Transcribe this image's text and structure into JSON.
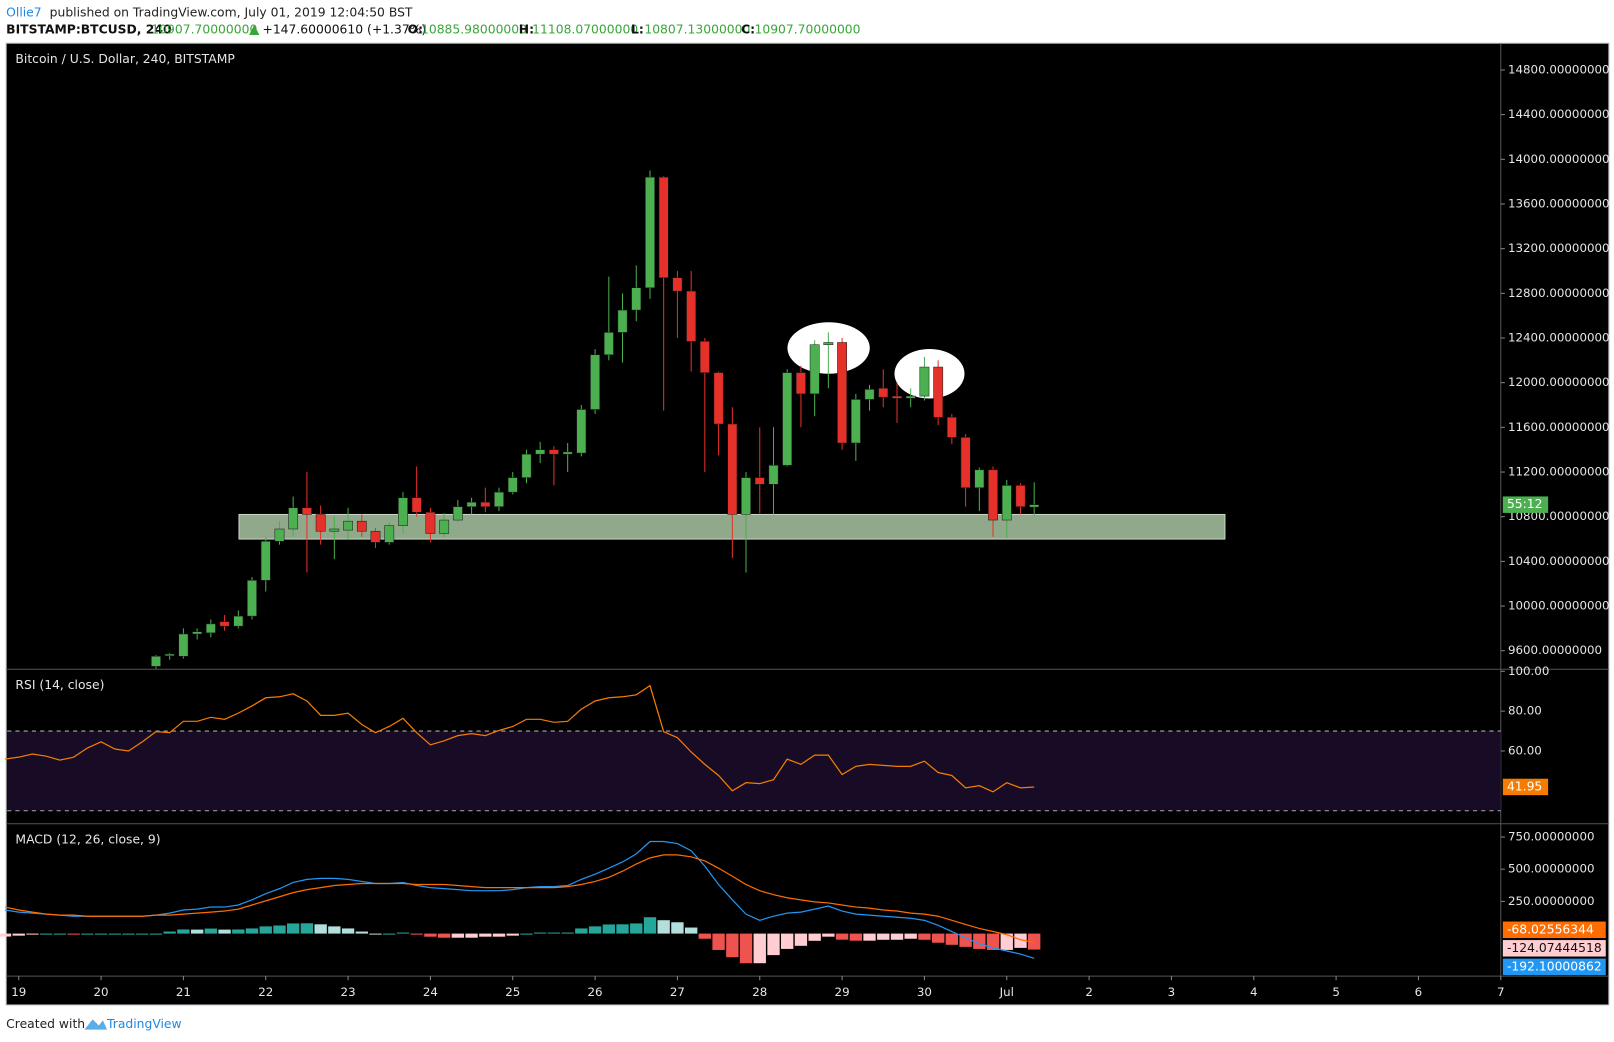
{
  "header": {
    "author": "Ollie7",
    "published": "published on TradingView.com, July 01, 2019 12:04:50 BST"
  },
  "symbol_bar": {
    "symbol": "BITSTAMP:BTCUSD, 240",
    "last": "10907.70000000",
    "change": "+147.60000610 (+1.37%)",
    "ohlc": [
      {
        "label": "O:",
        "value": "10885.98000000"
      },
      {
        "label": "H:",
        "value": "11108.07000000"
      },
      {
        "label": "L:",
        "value": "10807.13000000"
      },
      {
        "label": "C:",
        "value": "10907.70000000"
      }
    ]
  },
  "footer": {
    "created": "Created with",
    "brand": "TradingView"
  },
  "chart_data": [
    {
      "type": "candlestick",
      "title": "Bitcoin / U.S. Dollar, 240, BITSTAMP",
      "countdown": "55:12",
      "up_color": "#4caf50",
      "down_color": "#e53129",
      "xlim": [
        18.86,
        37.0
      ],
      "xticks": [
        19,
        20,
        21,
        22,
        23,
        24,
        25,
        26,
        27,
        28,
        29,
        30,
        {
          "value": 31,
          "label": "Jul"
        },
        {
          "value": 32,
          "label": "2"
        },
        {
          "value": 33,
          "label": "3"
        },
        {
          "value": 34,
          "label": "4"
        },
        {
          "value": 35,
          "label": "5"
        },
        {
          "value": 36,
          "label": "6"
        },
        {
          "value": 37,
          "label": "7"
        }
      ],
      "ylim": [
        9434,
        15030
      ],
      "yticks": [
        {
          "value": 9600,
          "label": "9600.00000000"
        },
        {
          "value": 10000,
          "label": "10000.00000000"
        },
        {
          "value": 10400,
          "label": "10400.00000000"
        },
        {
          "value": 10800,
          "label": "10800.00000000"
        },
        {
          "value": 11200,
          "label": "11200.00000000"
        },
        {
          "value": 11600,
          "label": "11600.00000000"
        },
        {
          "value": 12000,
          "label": "12000.00000000"
        },
        {
          "value": 12400,
          "label": "12400.00000000"
        },
        {
          "value": 12800,
          "label": "12800.00000000"
        },
        {
          "value": 13200,
          "label": "13200.00000000"
        },
        {
          "value": 13600,
          "label": "13600.00000000"
        },
        {
          "value": 14000,
          "label": "14000.00000000"
        },
        {
          "value": 14400,
          "label": "14400.00000000"
        },
        {
          "value": 14800,
          "label": "14800.00000000"
        }
      ],
      "zone": {
        "x": [
          21.675,
          33.65
        ],
        "y": [
          10600,
          10820
        ],
        "color": "#8fa98a"
      },
      "x": [
        20.667,
        20.833,
        21,
        21.167,
        21.333,
        21.5,
        21.667,
        21.833,
        22,
        22.167,
        22.333,
        22.5,
        22.667,
        22.833,
        23,
        23.167,
        23.333,
        23.5,
        23.667,
        23.833,
        24,
        24.167,
        24.333,
        24.5,
        24.667,
        24.833,
        25,
        25.167,
        25.333,
        25.5,
        25.667,
        25.833,
        26,
        26.167,
        26.333,
        26.5,
        26.667,
        26.833,
        27,
        27.167,
        27.333,
        27.5,
        27.667,
        27.833,
        28,
        28.167,
        28.333,
        28.5,
        28.667,
        28.833,
        29,
        29.167,
        29.333,
        29.5,
        29.667,
        29.833,
        30,
        30.167,
        30.333,
        30.5,
        30.667,
        30.833,
        31,
        31.167,
        31.333
      ],
      "open": [
        9460,
        9555,
        9550,
        9750,
        9760,
        9860,
        9820,
        9910,
        10230,
        10580,
        10690,
        10880,
        10820,
        10670,
        10680,
        10760,
        10670,
        10570,
        10720,
        10970,
        10840,
        10650,
        10770,
        10890,
        10930,
        10890,
        11020,
        11150,
        11360,
        11400,
        11360,
        11370,
        11760,
        12250,
        12450,
        12650,
        12850,
        13840,
        12940,
        12820,
        12370,
        12090,
        11630,
        10820,
        11150,
        11090,
        11260,
        12090,
        11900,
        12340,
        12360,
        11460,
        11850,
        11950,
        11880,
        11860,
        11880,
        12140,
        11690,
        11510,
        11060,
        11220,
        10770,
        11080,
        10885.98
      ],
      "high": [
        9560,
        9580,
        9800,
        9800,
        9880,
        9920,
        9960,
        10260,
        10620,
        10760,
        10980,
        11200,
        10900,
        10800,
        10880,
        10820,
        10700,
        10750,
        11020,
        11250,
        10880,
        10830,
        10950,
        10970,
        11060,
        11060,
        11200,
        11400,
        11470,
        11430,
        11460,
        11800,
        12300,
        12950,
        12800,
        13050,
        13900,
        13850,
        13000,
        13000,
        12400,
        12100,
        11780,
        11200,
        11600,
        11600,
        12120,
        12150,
        12380,
        12450,
        12400,
        11900,
        11980,
        12120,
        12000,
        11950,
        12230,
        12200,
        11720,
        11540,
        11240,
        11250,
        11130,
        11100,
        11108.07
      ],
      "low": [
        9440,
        9520,
        9530,
        9700,
        9720,
        9780,
        9800,
        9880,
        10130,
        10550,
        10620,
        10300,
        10550,
        10420,
        10600,
        10620,
        10520,
        10550,
        10650,
        10800,
        10570,
        10620,
        10760,
        10820,
        10840,
        10850,
        11000,
        11100,
        11280,
        11080,
        11200,
        11340,
        11720,
        12200,
        12180,
        12550,
        12750,
        11750,
        12400,
        12100,
        11200,
        11350,
        10430,
        10300,
        10830,
        10820,
        11250,
        11600,
        11700,
        11950,
        11400,
        11300,
        11750,
        11780,
        11640,
        11780,
        11840,
        11620,
        11450,
        10890,
        10850,
        10620,
        10610,
        10820,
        10807.13
      ],
      "close": [
        9550,
        9570,
        9750,
        9770,
        9840,
        9820,
        9910,
        10230,
        10580,
        10690,
        10880,
        10820,
        10670,
        10690,
        10760,
        10670,
        10570,
        10720,
        10970,
        10840,
        10650,
        10770,
        10890,
        10930,
        10890,
        11020,
        11150,
        11360,
        11400,
        11360,
        11380,
        11760,
        12250,
        12450,
        12650,
        12850,
        13840,
        12940,
        12820,
        12370,
        12090,
        11630,
        10820,
        11150,
        11090,
        11260,
        12090,
        11900,
        12340,
        12360,
        11460,
        11850,
        11940,
        11870,
        11860,
        11880,
        12140,
        11690,
        11510,
        11060,
        11220,
        10770,
        11080,
        10890,
        10907.7
      ]
    },
    {
      "type": "line",
      "title": "RSI (14, close)",
      "xlim": [
        18.86,
        37.0
      ],
      "ylim": [
        23.5,
        100.5
      ],
      "yticks": [
        {
          "value": 100,
          "label": "100.00"
        },
        {
          "value": 80,
          "label": "80.00"
        },
        {
          "value": 60,
          "label": "60.00"
        }
      ],
      "band": [
        30,
        70
      ],
      "band_color": "#170b26",
      "x": [
        18.833,
        19,
        19.167,
        19.333,
        19.5,
        19.667,
        19.833,
        20,
        20.167,
        20.333,
        20.5,
        20.667,
        20.833,
        21,
        21.167,
        21.333,
        21.5,
        21.667,
        21.833,
        22,
        22.167,
        22.333,
        22.5,
        22.667,
        22.833,
        23,
        23.167,
        23.333,
        23.5,
        23.667,
        23.833,
        24,
        24.167,
        24.333,
        24.5,
        24.667,
        24.833,
        25,
        25.167,
        25.333,
        25.5,
        25.667,
        25.833,
        26,
        26.167,
        26.333,
        26.5,
        26.667,
        26.833,
        27,
        27.167,
        27.333,
        27.5,
        27.667,
        27.833,
        28,
        28.167,
        28.333,
        28.5,
        28.667,
        28.833,
        29,
        29.167,
        29.333,
        29.5,
        29.667,
        29.833,
        30,
        30.167,
        30.333,
        30.5,
        30.667,
        30.833,
        31,
        31.167,
        31.333
      ],
      "series": [
        {
          "color": "#f57c00",
          "values": [
            55.9,
            56.9,
            58.5,
            57.4,
            55.4,
            56.9,
            61.5,
            64.6,
            61.0,
            60.0,
            64.6,
            69.7,
            69.2,
            74.9,
            74.9,
            76.9,
            75.9,
            79.0,
            82.6,
            86.7,
            87.2,
            88.7,
            85.1,
            77.9,
            77.9,
            79.0,
            73.3,
            69.2,
            72.3,
            76.4,
            69.2,
            63.1,
            65.1,
            67.7,
            68.7,
            67.7,
            70.3,
            72.3,
            75.9,
            75.9,
            74.4,
            74.9,
            81.0,
            85.1,
            86.7,
            87.2,
            88.2,
            92.8,
            69.7,
            66.7,
            59.5,
            53.3,
            47.7,
            40.0,
            44.1,
            43.6,
            45.6,
            55.9,
            53.3,
            57.9,
            57.9,
            48.2,
            52.3,
            53.3,
            52.8,
            52.3,
            52.3,
            54.9,
            49.2,
            47.7,
            41.5,
            42.6,
            39.5,
            44.1,
            41.5,
            41.95
          ]
        }
      ]
    },
    {
      "type": "macd",
      "title": "MACD (12, 26, close, 9)",
      "xlim": [
        18.86,
        37.0
      ],
      "ylim": [
        -330,
        845
      ],
      "yticks": [
        {
          "value": 750,
          "label": "750.00000000"
        },
        {
          "value": 500,
          "label": "500.00000000"
        },
        {
          "value": 250,
          "label": "250.00000000"
        }
      ],
      "hist_colors": {
        "up_rising": "#26a69a",
        "up_falling": "#b2dfdb",
        "down_falling": "#ef5350",
        "down_rising": "#ffcdd2"
      },
      "x": [
        18.833,
        19,
        19.167,
        19.333,
        19.5,
        19.667,
        19.833,
        20,
        20.167,
        20.333,
        20.5,
        20.667,
        20.833,
        21,
        21.167,
        21.333,
        21.5,
        21.667,
        21.833,
        22,
        22.167,
        22.333,
        22.5,
        22.667,
        22.833,
        23,
        23.167,
        23.333,
        23.5,
        23.667,
        23.833,
        24,
        24.167,
        24.333,
        24.5,
        24.667,
        24.833,
        25,
        25.167,
        25.333,
        25.5,
        25.667,
        25.833,
        26,
        26.167,
        26.333,
        26.5,
        26.667,
        26.833,
        27,
        27.167,
        27.333,
        27.5,
        27.667,
        27.833,
        28,
        28.167,
        28.333,
        28.5,
        28.667,
        28.833,
        29,
        29.167,
        29.333,
        29.5,
        29.667,
        29.833,
        30,
        30.167,
        30.333,
        30.5,
        30.667,
        30.833,
        31,
        31.167,
        31.333
      ],
      "series": [
        {
          "style": "histogram",
          "color": "#ffcdd2",
          "values": [
            -23,
            -16,
            -8,
            0,
            0,
            -8,
            0,
            0,
            0,
            0,
            0,
            0,
            16,
            32,
            31,
            39,
            31,
            32,
            40,
            56,
            63,
            79,
            80,
            72,
            56,
            40,
            16,
            0,
            0,
            8,
            -8,
            -24,
            -32,
            -32,
            -32,
            -24,
            -24,
            -16,
            0,
            8,
            8,
            8,
            40,
            56,
            71,
            72,
            79,
            127,
            104,
            88,
            47,
            -40,
            -127,
            -183,
            -230,
            -230,
            -167,
            -119,
            -95,
            -56,
            -24,
            -47,
            -55,
            -55,
            -48,
            -48,
            -40,
            -48,
            -71,
            -87,
            -103,
            -119,
            -127,
            -127,
            -111,
            -124.07444518
          ]
        },
        {
          "style": "line",
          "color": "#2196f3",
          "values": [
            183,
            167,
            159,
            151,
            143,
            135,
            135,
            135,
            135,
            135,
            135,
            143,
            159,
            183,
            190,
            206,
            206,
            222,
            262,
            310,
            349,
            397,
            421,
            429,
            429,
            421,
            405,
            389,
            389,
            397,
            373,
            357,
            349,
            341,
            333,
            333,
            333,
            341,
            357,
            365,
            365,
            373,
            421,
            461,
            508,
            556,
            619,
            715,
            715,
            699,
            643,
            524,
            381,
            262,
            151,
            103,
            135,
            159,
            167,
            190,
            214,
            175,
            151,
            143,
            135,
            127,
            119,
            103,
            64,
            16,
            -32,
            -79,
            -111,
            -135,
            -159,
            -192.10000862
          ]
        },
        {
          "style": "line",
          "color": "#ff6d00",
          "values": [
            206,
            183,
            167,
            151,
            143,
            143,
            135,
            135,
            135,
            135,
            135,
            143,
            143,
            151,
            159,
            167,
            175,
            190,
            222,
            254,
            286,
            318,
            341,
            357,
            373,
            381,
            389,
            389,
            389,
            389,
            381,
            381,
            381,
            373,
            365,
            357,
            357,
            357,
            357,
            357,
            357,
            365,
            381,
            405,
            437,
            484,
            540,
            588,
            611,
            611,
            596,
            564,
            508,
            445,
            381,
            333,
            302,
            278,
            262,
            246,
            238,
            222,
            206,
            198,
            183,
            175,
            159,
            151,
            135,
            103,
            71,
            40,
            16,
            -8,
            -48,
            -68.02556344
          ]
        }
      ]
    }
  ]
}
